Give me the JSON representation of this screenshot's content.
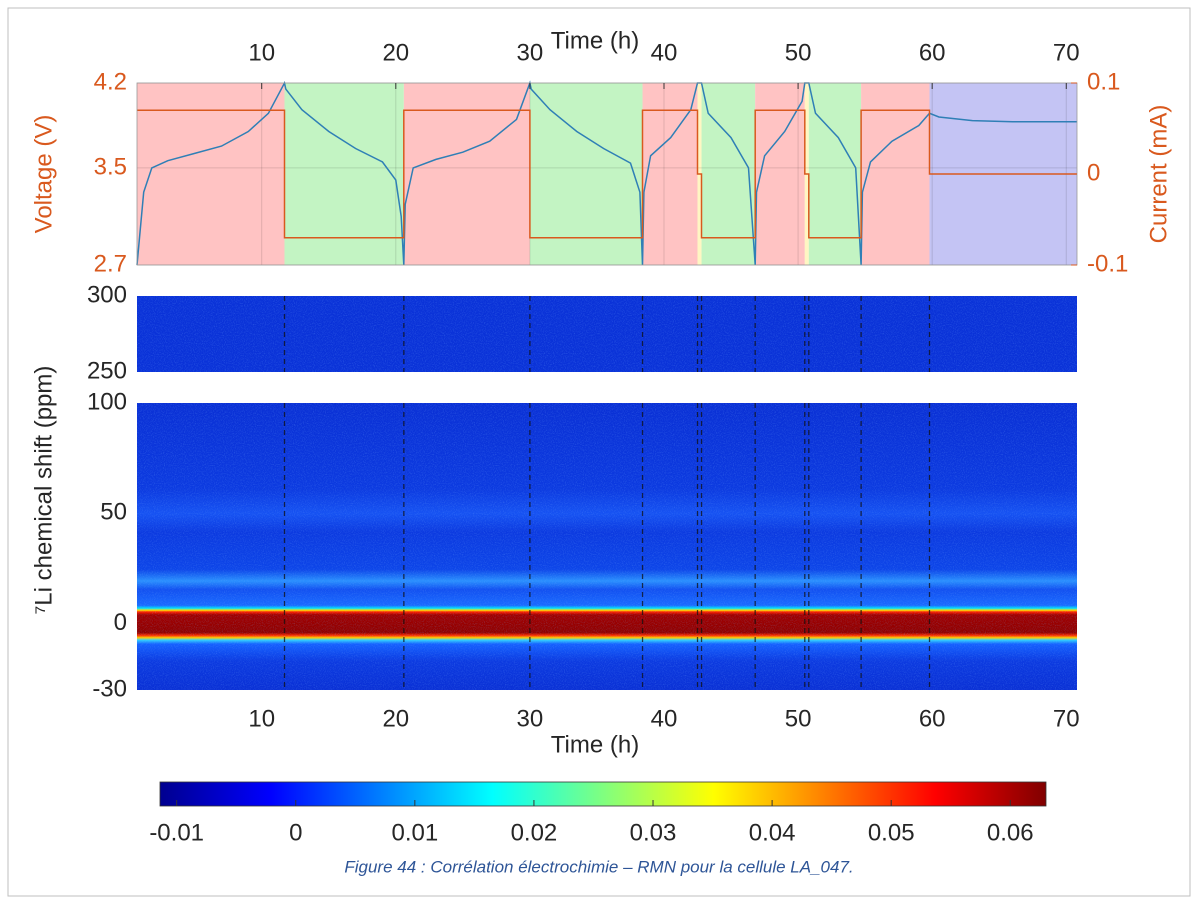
{
  "chart_data": [
    {
      "type": "line",
      "xlabel": "Time (h)",
      "ylabel": "Voltage (V)",
      "y2label": "Current (mA)",
      "xlim": [
        0.7,
        70.8
      ],
      "xticks": [
        10,
        20,
        30,
        40,
        50,
        60,
        70
      ],
      "ylim": [
        2.7,
        4.2
      ],
      "yticks": [
        2.7,
        3.5,
        4.2
      ],
      "y2lim": [
        -0.1,
        0.1
      ],
      "y2ticks": [
        -0.1,
        0,
        0.1
      ],
      "grid": true,
      "regions": [
        {
          "start": 0.7,
          "end": 11.7,
          "color": "#ffb8b8"
        },
        {
          "start": 11.7,
          "end": 20.6,
          "color": "#b8f2b8"
        },
        {
          "start": 20.6,
          "end": 30,
          "color": "#ffb8b8"
        },
        {
          "start": 30,
          "end": 38.4,
          "color": "#b8f2b8"
        },
        {
          "start": 38.4,
          "end": 42.5,
          "color": "#ffb8b8"
        },
        {
          "start": 42.5,
          "end": 42.8,
          "color": "#fff4b8"
        },
        {
          "start": 42.8,
          "end": 46.8,
          "color": "#b8f2b8"
        },
        {
          "start": 46.8,
          "end": 50.5,
          "color": "#ffb8b8"
        },
        {
          "start": 50.5,
          "end": 50.8,
          "color": "#fff4b8"
        },
        {
          "start": 50.8,
          "end": 54.7,
          "color": "#b8f2b8"
        },
        {
          "start": 54.7,
          "end": 59.8,
          "color": "#ffb8b8"
        },
        {
          "start": 59.8,
          "end": 70.8,
          "color": "#babaf2"
        }
      ],
      "series": [
        {
          "axis": "y",
          "color": "#2f7fb6",
          "x": [
            0.7,
            1.2,
            1.8,
            3,
            5,
            7,
            9,
            10.5,
            11.7,
            11.8,
            13,
            15,
            17,
            19,
            20,
            20.4,
            20.6,
            20.7,
            21.3,
            23,
            25,
            27,
            29,
            30,
            30.1,
            31.5,
            33.5,
            35.5,
            37.5,
            38.2,
            38.4,
            38.5,
            39,
            40.5,
            42,
            42.5,
            42.8,
            43.3,
            45,
            46.3,
            46.8,
            46.9,
            47.5,
            49,
            50.3,
            50.5,
            50.8,
            51.3,
            53,
            54.3,
            54.7,
            54.8,
            55.4,
            57,
            59,
            59.8,
            60.5,
            63,
            66,
            70.8
          ],
          "values": [
            2.7,
            3.3,
            3.5,
            3.56,
            3.62,
            3.68,
            3.8,
            3.95,
            4.2,
            4.15,
            3.98,
            3.8,
            3.66,
            3.55,
            3.4,
            3.1,
            2.7,
            3.2,
            3.5,
            3.57,
            3.63,
            3.72,
            3.9,
            4.2,
            4.15,
            3.98,
            3.8,
            3.66,
            3.54,
            3.3,
            2.7,
            3.3,
            3.6,
            3.75,
            3.98,
            4.2,
            4.2,
            3.95,
            3.75,
            3.5,
            2.7,
            3.3,
            3.6,
            3.8,
            4.05,
            4.2,
            4.2,
            3.95,
            3.75,
            3.5,
            2.7,
            3.3,
            3.55,
            3.72,
            3.85,
            3.95,
            3.92,
            3.89,
            3.88,
            3.88
          ]
        },
        {
          "axis": "y2",
          "color": "#d9591e",
          "x": [
            0.7,
            11.7,
            11.7,
            20.6,
            20.6,
            30,
            30,
            38.4,
            38.4,
            42.5,
            42.5,
            42.8,
            42.8,
            46.8,
            46.8,
            50.5,
            50.5,
            50.8,
            50.8,
            54.7,
            54.7,
            59.8,
            59.8,
            70.8
          ],
          "values": [
            0.07,
            0.07,
            -0.07,
            -0.07,
            0.07,
            0.07,
            -0.07,
            -0.07,
            0.07,
            0.07,
            0,
            0,
            -0.07,
            -0.07,
            0.07,
            0.07,
            0,
            0,
            -0.07,
            -0.07,
            0.07,
            0.07,
            0,
            0
          ]
        }
      ]
    },
    {
      "type": "heatmap",
      "xlabel": "Time (h)",
      "ylabel": "⁷Li chemical shift (ppm)",
      "xlim": [
        0.7,
        70.8
      ],
      "xticks": [
        10,
        20,
        30,
        40,
        50,
        60,
        70
      ],
      "panels": [
        {
          "ylim": [
            250,
            300
          ],
          "yticks": [
            250,
            300
          ]
        },
        {
          "ylim": [
            -30,
            100
          ],
          "yticks": [
            -30,
            0,
            50,
            100
          ]
        }
      ],
      "colorbar": {
        "clim": [
          -0.0114,
          0.063
        ],
        "ticks": [
          -0.01,
          0,
          0.01,
          0.02,
          0.03,
          0.04,
          0.05,
          0.06
        ]
      }
    }
  ],
  "caption": "Figure 44 : Corrélation électrochimie – RMN pour la cellule LA_047."
}
